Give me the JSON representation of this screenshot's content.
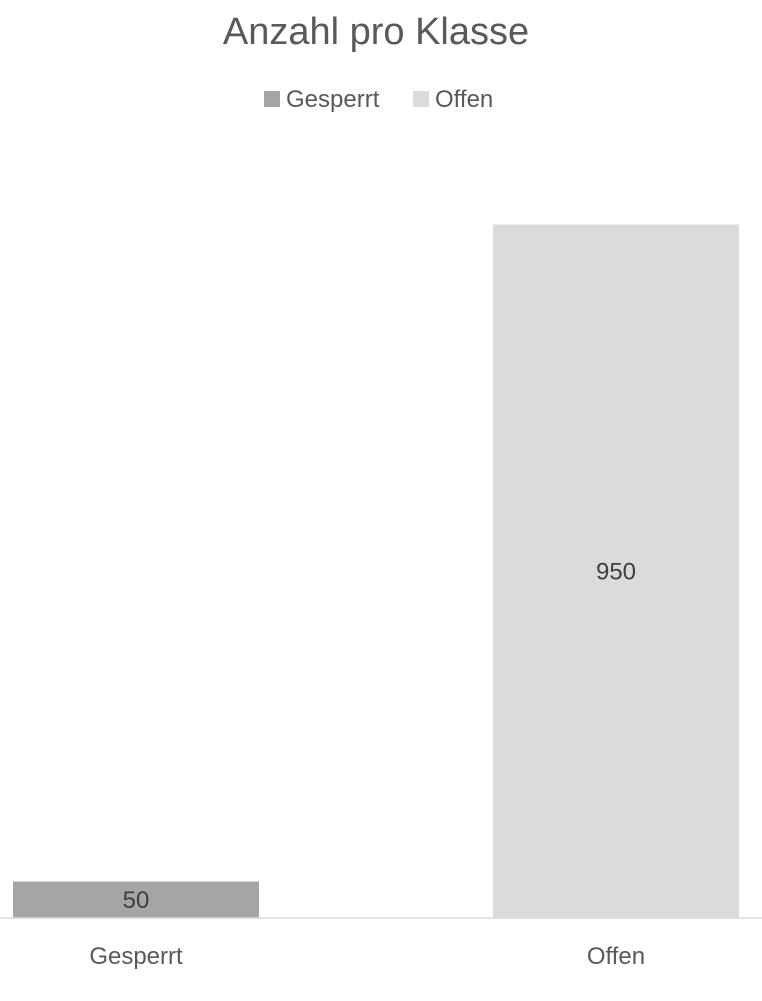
{
  "chart_data": {
    "type": "bar",
    "title": "Anzahl pro Klasse",
    "categories": [
      "Gesperrt",
      "Offen"
    ],
    "values": [
      50,
      950
    ],
    "data_labels": [
      "50",
      "950"
    ],
    "colors": [
      "#A5A5A5",
      "#DBDBDB"
    ],
    "legend": {
      "position": "top",
      "items": [
        {
          "label": "Gesperrt",
          "color": "#A5A5A5"
        },
        {
          "label": "Offen",
          "color": "#DBDBDB"
        }
      ]
    },
    "ylim": [
      0,
      1000
    ],
    "grid": false,
    "xlabel": "",
    "ylabel": ""
  }
}
